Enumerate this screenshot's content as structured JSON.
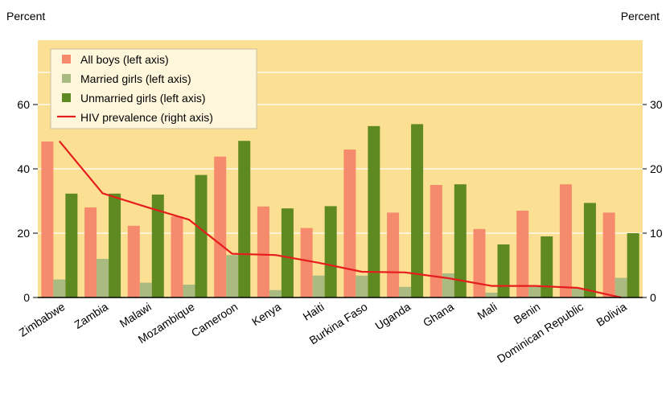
{
  "chart_data": {
    "type": "bar",
    "left_axis_label": "Percent",
    "right_axis_label": "Percent",
    "left_ylim": [
      0,
      80
    ],
    "right_ylim": [
      0,
      40
    ],
    "left_ticks": [
      "0",
      "20",
      "40",
      "60"
    ],
    "right_ticks": [
      "0",
      "10",
      "20",
      "30"
    ],
    "grid": true,
    "legend_position": "top-left",
    "categories": [
      "Zimbabwe",
      "Zambia",
      "Malawi",
      "Mozambique",
      "Cameroon",
      "Kenya",
      "Haiti",
      "Burkina Faso",
      "Uganda",
      "Ghana",
      "Mali",
      "Benin",
      "Dominican Republic",
      "Bolivia"
    ],
    "series": [
      {
        "name": "All boys (left axis)",
        "type": "bar",
        "axis": "left",
        "color": "#f58b6c",
        "values": [
          48.5,
          28,
          22.3,
          25.2,
          43.8,
          28.3,
          21.6,
          46,
          26.4,
          35,
          21.3,
          27,
          35.2,
          26.4
        ]
      },
      {
        "name": "Married girls (left axis)",
        "type": "bar",
        "axis": "left",
        "color": "#a9bb80",
        "values": [
          5.6,
          12,
          4.6,
          4,
          13.2,
          2.3,
          6.8,
          6.8,
          3.3,
          7.5,
          1.5,
          3.3,
          2.9,
          6.1
        ]
      },
      {
        "name": "Unmarried girls (left axis)",
        "type": "bar",
        "axis": "left",
        "color": "#5f8a22",
        "values": [
          32.3,
          32.3,
          32,
          38.1,
          48.7,
          27.7,
          28.4,
          53.3,
          53.9,
          35.2,
          16.5,
          19,
          29.4,
          20
        ]
      },
      {
        "name": "HIV prevalence (right axis)",
        "type": "line",
        "axis": "right",
        "color": "#e51d1d",
        "values": [
          24.3,
          16.2,
          14.1,
          12.1,
          6.8,
          6.6,
          5.4,
          4,
          3.9,
          3,
          1.8,
          1.8,
          1.5,
          0
        ]
      }
    ]
  }
}
